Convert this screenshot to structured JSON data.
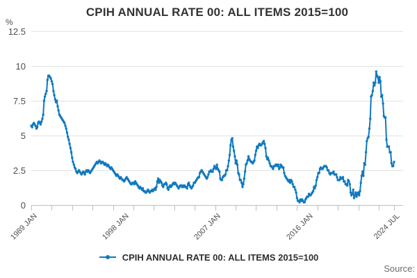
{
  "title": "CPIH ANNUAL RATE 00: ALL ITEMS 2015=100",
  "y_axis": {
    "unit": "%",
    "ticks": [
      {
        "label": "12.5",
        "value": 12.5
      },
      {
        "label": "10",
        "value": 10
      },
      {
        "label": "7.5",
        "value": 7.5
      },
      {
        "label": "5",
        "value": 5
      },
      {
        "label": "2.5",
        "value": 2.5
      },
      {
        "label": "0",
        "value": 0
      }
    ]
  },
  "x_axis": {
    "labels": [
      {
        "text": "1989 JAN",
        "t": 1989.0
      },
      {
        "text": "1998 JAN",
        "t": 1998.0
      },
      {
        "text": "2007 JAN",
        "t": 2007.0
      },
      {
        "text": "2016 JAN",
        "t": 2016.0
      },
      {
        "text": "2024 JUL",
        "t": 2024.5
      }
    ],
    "tick_start_year": 1989,
    "tick_end_year": 2023,
    "tick_step_years": 2,
    "final_tick_t": 2024.5
  },
  "legend": {
    "label": "CPIH ANNUAL RATE 00: ALL ITEMS 2015=100"
  },
  "source_label": "Source:",
  "colors": {
    "line": "#0f79be",
    "grid": "#e2e2e2",
    "axis": "#b3c0d5",
    "title_text": "#333333",
    "tick_text": "#4f4f4f",
    "source_text": "#6c6c6c"
  },
  "chart_data": {
    "type": "line",
    "title": "CPIH ANNUAL RATE 00: ALL ITEMS 2015=100",
    "xlabel": "",
    "ylabel": "%",
    "ylim": [
      0,
      12.5
    ],
    "y_ticks": [
      0,
      2.5,
      5,
      7.5,
      10,
      12.5
    ],
    "x_tick_labels": [
      "1989 JAN",
      "1998 JAN",
      "2007 JAN",
      "2016 JAN",
      "2024 JUL"
    ],
    "grid": "horizontal",
    "legend_position": "bottom",
    "marker": "dot",
    "series": [
      {
        "name": "CPIH ANNUAL RATE 00: ALL ITEMS 2015=100",
        "frequency": "monthly",
        "start": "1989-01",
        "end": "2024-07",
        "t0": 1989.0,
        "t1": 2024.5,
        "values": [
          5.7,
          5.6,
          5.8,
          5.9,
          5.8,
          5.7,
          5.5,
          5.6,
          5.9,
          6.0,
          5.9,
          5.8,
          6.0,
          6.2,
          6.5,
          7.5,
          7.8,
          8.0,
          8.2,
          9.0,
          9.3,
          9.3,
          9.2,
          9.1,
          8.9,
          8.7,
          8.2,
          7.9,
          7.6,
          7.4,
          7.5,
          7.1,
          6.8,
          6.5,
          6.4,
          6.3,
          6.2,
          6.1,
          6.0,
          5.9,
          5.7,
          5.5,
          5.2,
          4.9,
          4.7,
          4.4,
          4.1,
          3.8,
          3.4,
          3.1,
          2.9,
          2.7,
          2.6,
          2.4,
          2.3,
          2.4,
          2.5,
          2.4,
          2.3,
          2.2,
          2.3,
          2.4,
          2.3,
          2.2,
          2.4,
          2.5,
          2.4,
          2.5,
          2.4,
          2.3,
          2.4,
          2.5,
          2.6,
          2.7,
          2.8,
          2.9,
          3.0,
          3.1,
          3.0,
          3.1,
          3.2,
          3.1,
          3.0,
          3.1,
          3.1,
          3.0,
          2.9,
          3.0,
          2.9,
          2.8,
          2.9,
          2.8,
          2.7,
          2.6,
          2.7,
          2.6,
          2.5,
          2.4,
          2.3,
          2.2,
          2.1,
          2.2,
          2.1,
          2.0,
          1.9,
          2.0,
          1.9,
          1.8,
          1.8,
          1.7,
          1.8,
          1.9,
          2.0,
          1.9,
          1.8,
          1.7,
          1.6,
          1.5,
          1.5,
          1.6,
          1.6,
          1.5,
          1.7,
          1.6,
          1.5,
          1.4,
          1.3,
          1.2,
          1.3,
          1.2,
          1.1,
          1.2,
          1.0,
          1.0,
          0.9,
          0.9,
          1.0,
          1.1,
          1.0,
          0.9,
          1.0,
          1.0,
          1.1,
          1.0,
          1.1,
          1.2,
          1.1,
          1.3,
          1.7,
          1.9,
          1.6,
          1.8,
          1.7,
          1.6,
          1.4,
          1.3,
          1.5,
          1.5,
          1.6,
          1.5,
          1.2,
          1.1,
          1.3,
          1.4,
          1.3,
          1.4,
          1.5,
          1.6,
          1.5,
          1.6,
          1.5,
          1.4,
          1.3,
          1.2,
          1.3,
          1.4,
          1.4,
          1.3,
          1.4,
          1.3,
          1.4,
          1.3,
          1.3,
          1.2,
          1.5,
          1.6,
          1.4,
          1.3,
          1.2,
          1.3,
          1.4,
          1.6,
          1.6,
          1.7,
          1.8,
          1.9,
          2.0,
          2.0,
          2.3,
          2.4,
          2.5,
          2.4,
          2.3,
          2.2,
          2.1,
          2.0,
          1.9,
          2.0,
          2.2,
          2.4,
          2.4,
          2.5,
          2.4,
          2.4,
          2.6,
          2.8,
          2.7,
          2.6,
          2.9,
          2.6,
          2.5,
          2.4,
          1.9,
          1.8,
          1.8,
          2.0,
          2.1,
          2.1,
          2.2,
          2.5,
          2.5,
          2.8,
          3.2,
          3.6,
          4.3,
          4.7,
          4.8,
          4.2,
          3.9,
          3.5,
          3.0,
          3.2,
          2.9,
          2.3,
          2.2,
          1.8,
          1.8,
          1.6,
          1.3,
          1.5,
          1.9,
          2.4,
          2.9,
          3.0,
          3.2,
          3.5,
          3.3,
          3.2,
          3.1,
          3.1,
          3.0,
          3.1,
          3.2,
          3.6,
          3.9,
          4.2,
          4.1,
          4.3,
          4.4,
          4.3,
          4.3,
          4.4,
          4.5,
          4.6,
          4.4,
          4.1,
          3.5,
          3.3,
          3.4,
          3.2,
          3.0,
          2.8,
          2.8,
          2.7,
          2.6,
          2.8,
          2.8,
          2.9,
          2.9,
          2.8,
          2.9,
          2.6,
          2.7,
          2.9,
          2.8,
          2.7,
          2.7,
          2.3,
          2.1,
          2.0,
          1.9,
          1.8,
          1.7,
          1.8,
          1.6,
          1.8,
          1.7,
          1.5,
          1.3,
          1.3,
          1.1,
          0.9,
          0.5,
          0.3,
          0.3,
          0.2,
          0.4,
          0.3,
          0.4,
          0.3,
          0.2,
          0.2,
          0.4,
          0.5,
          0.6,
          0.6,
          0.8,
          0.7,
          0.7,
          0.8,
          0.9,
          1.0,
          1.3,
          1.2,
          1.4,
          1.8,
          2.0,
          2.3,
          2.3,
          2.6,
          2.7,
          2.6,
          2.6,
          2.7,
          2.8,
          2.8,
          2.8,
          2.7,
          2.5,
          2.5,
          2.3,
          2.2,
          2.3,
          2.3,
          2.3,
          2.4,
          2.2,
          2.2,
          2.2,
          2.0,
          1.8,
          1.8,
          1.8,
          2.0,
          1.9,
          1.9,
          2.0,
          1.7,
          1.7,
          1.5,
          1.5,
          1.4,
          1.8,
          1.7,
          1.5,
          0.9,
          0.7,
          0.8,
          1.1,
          0.5,
          0.7,
          0.9,
          0.6,
          0.8,
          0.9,
          0.7,
          1.0,
          1.6,
          2.1,
          2.4,
          2.1,
          3.0,
          2.9,
          3.8,
          4.6,
          4.8,
          4.9,
          5.5,
          6.2,
          7.8,
          7.9,
          8.2,
          8.8,
          8.6,
          8.8,
          9.6,
          9.3,
          9.2,
          8.8,
          9.2,
          8.9,
          7.8,
          7.9,
          7.3,
          6.4,
          6.3,
          6.3,
          4.7,
          4.2,
          4.2,
          4.2,
          3.8,
          3.8,
          3.0,
          2.8,
          2.8,
          3.1
        ]
      }
    ]
  }
}
